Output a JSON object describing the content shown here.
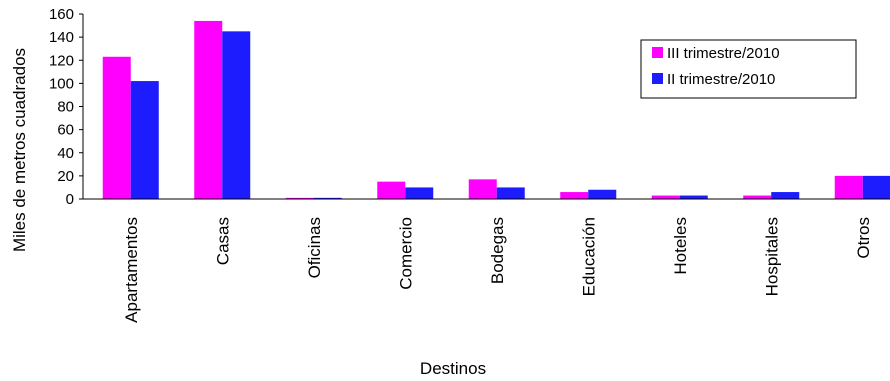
{
  "chart_data": {
    "type": "bar",
    "xlabel": "Destinos",
    "ylabel": "Miles de metros cuadrados",
    "ylim": [
      0,
      160
    ],
    "yticks": [
      0,
      20,
      40,
      60,
      80,
      100,
      120,
      140,
      160
    ],
    "categories": [
      "Apartamentos",
      "Casas",
      "Oficinas",
      "Comercio",
      "Bodegas",
      "Educación",
      "Hoteles",
      "Hospitales",
      "Otros"
    ],
    "series": [
      {
        "name": "III trimestre/2010",
        "color": "#ff00ff",
        "values": [
          123,
          154,
          1,
          15,
          17,
          6,
          3,
          3,
          20
        ]
      },
      {
        "name": "II trimestre/2010",
        "color": "#1c1cff",
        "values": [
          102,
          145,
          1,
          10,
          10,
          8,
          3,
          6,
          20
        ]
      }
    ],
    "legend_position": "top-right",
    "grid": false
  }
}
